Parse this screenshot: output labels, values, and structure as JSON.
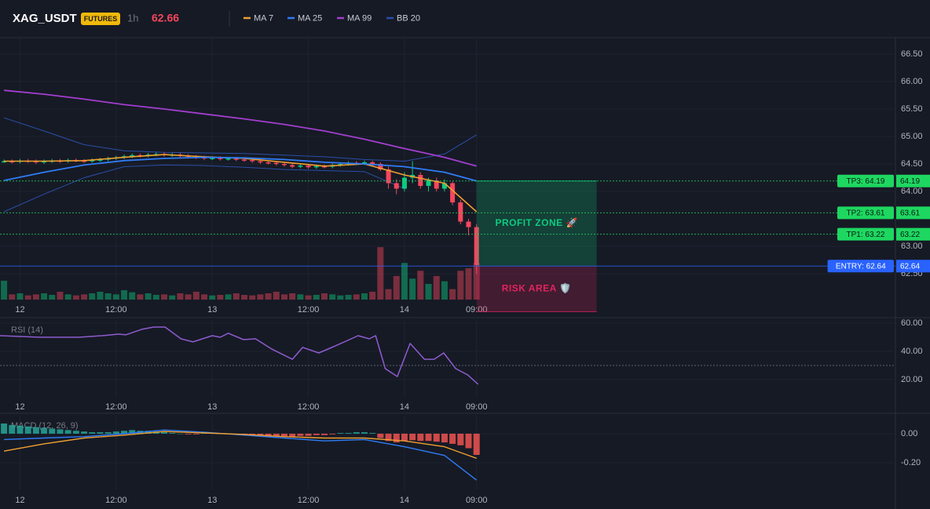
{
  "header": {
    "symbol": "XAG_USDT",
    "badge": "FUTURES",
    "interval": "1h",
    "last_price": 62.66
  },
  "chart_data": [
    {
      "type": "candlestick",
      "x": [
        -2,
        -1,
        0,
        1,
        2,
        3,
        4,
        5,
        6,
        7,
        8,
        9,
        10,
        11,
        12,
        13,
        14,
        15,
        16,
        17,
        18,
        19,
        20,
        21,
        22,
        23,
        24,
        25,
        26,
        27,
        28,
        29,
        30,
        31,
        32,
        33,
        34,
        35,
        36,
        37,
        38,
        39,
        40,
        41,
        42,
        43,
        44,
        45,
        46,
        47,
        48,
        49,
        50,
        51,
        52,
        53,
        54,
        55,
        56,
        57
      ],
      "open": [
        64.55,
        64.55,
        64.54,
        64.56,
        64.55,
        64.53,
        64.55,
        64.56,
        64.55,
        64.57,
        64.56,
        64.55,
        64.57,
        64.58,
        64.6,
        64.62,
        64.64,
        64.66,
        64.65,
        64.67,
        64.68,
        64.66,
        64.67,
        64.65,
        64.63,
        64.62,
        64.6,
        64.61,
        64.59,
        64.6,
        64.58,
        64.57,
        64.55,
        64.53,
        64.52,
        64.5,
        64.48,
        64.45,
        64.47,
        64.44,
        64.46,
        64.45,
        64.48,
        64.5,
        64.52,
        64.51,
        64.53,
        64.5,
        64.4,
        64.15,
        64.05,
        64.25,
        64.3,
        64.1,
        64.2,
        64.05,
        64.15,
        63.8,
        63.45,
        63.35
      ],
      "high": [
        64.58,
        64.58,
        64.59,
        64.59,
        64.58,
        64.58,
        64.59,
        64.59,
        64.6,
        64.6,
        64.59,
        64.6,
        64.61,
        64.63,
        64.65,
        64.67,
        64.69,
        64.69,
        64.7,
        64.71,
        64.71,
        64.7,
        64.7,
        64.68,
        64.66,
        64.65,
        64.64,
        64.64,
        64.63,
        64.63,
        64.61,
        64.6,
        64.58,
        64.56,
        64.55,
        64.53,
        64.51,
        64.5,
        64.5,
        64.49,
        64.49,
        64.51,
        64.53,
        64.55,
        64.55,
        64.56,
        64.56,
        64.53,
        64.45,
        64.22,
        64.35,
        64.55,
        64.35,
        64.25,
        64.25,
        64.22,
        64.18,
        63.85,
        63.5,
        63.4
      ],
      "low": [
        64.52,
        64.51,
        64.51,
        64.52,
        64.5,
        64.5,
        64.52,
        64.52,
        64.52,
        64.53,
        64.52,
        64.52,
        64.54,
        64.55,
        64.57,
        64.59,
        64.61,
        64.62,
        64.62,
        64.64,
        64.63,
        64.63,
        64.62,
        64.6,
        64.59,
        64.57,
        64.57,
        64.56,
        64.56,
        64.55,
        64.54,
        64.52,
        64.5,
        64.49,
        64.47,
        64.45,
        64.42,
        64.42,
        64.41,
        64.41,
        64.42,
        64.42,
        64.45,
        64.47,
        64.48,
        64.48,
        64.47,
        64.37,
        64.05,
        63.95,
        64.0,
        64.15,
        64.05,
        64.0,
        64.0,
        64.0,
        63.75,
        63.4,
        63.2,
        62.5
      ],
      "close": [
        64.55,
        64.54,
        64.56,
        64.55,
        64.53,
        64.55,
        64.56,
        64.55,
        64.57,
        64.56,
        64.55,
        64.57,
        64.58,
        64.6,
        64.62,
        64.64,
        64.66,
        64.65,
        64.67,
        64.68,
        64.66,
        64.67,
        64.65,
        64.63,
        64.62,
        64.6,
        64.61,
        64.59,
        64.6,
        64.58,
        64.57,
        64.55,
        64.53,
        64.52,
        64.5,
        64.48,
        64.45,
        64.47,
        64.44,
        64.46,
        64.45,
        64.48,
        64.5,
        64.52,
        64.51,
        64.53,
        64.5,
        64.4,
        64.15,
        64.05,
        64.25,
        64.3,
        64.1,
        64.2,
        64.05,
        64.15,
        63.8,
        63.45,
        63.35,
        62.66
      ],
      "volume": [
        36,
        10,
        12,
        8,
        10,
        12,
        9,
        15,
        10,
        8,
        10,
        12,
        15,
        12,
        10,
        18,
        14,
        10,
        12,
        9,
        10,
        8,
        12,
        10,
        15,
        10,
        8,
        9,
        10,
        12,
        9,
        8,
        10,
        12,
        15,
        10,
        12,
        10,
        8,
        9,
        12,
        10,
        8,
        9,
        10,
        12,
        15,
        100,
        20,
        45,
        70,
        40,
        55,
        30,
        45,
        35,
        20,
        55,
        60,
        70
      ],
      "y2lim": [
        0,
        500
      ],
      "up_color": "#0ecb81",
      "down_color": "#f6465d",
      "xlim": [
        -2.5,
        109.3
      ],
      "xticks": [
        {
          "value": 0,
          "label": "12"
        },
        {
          "value": 12,
          "label": "12:00"
        },
        {
          "value": 24,
          "label": "13"
        },
        {
          "value": 36,
          "label": "12:00"
        },
        {
          "value": 48,
          "label": "14"
        },
        {
          "value": 57,
          "label": "09:00"
        }
      ],
      "ylim": [
        62.03,
        66.8
      ],
      "yticks": [
        {
          "value": 62.5,
          "label": "62.50"
        },
        {
          "value": 63,
          "label": "63.00"
        },
        {
          "value": 64,
          "label": "64.00"
        },
        {
          "value": 64.5,
          "label": "64.50"
        },
        {
          "value": 65,
          "label": "65.00"
        },
        {
          "value": 65.5,
          "label": "65.50"
        },
        {
          "value": 66,
          "label": "66.00"
        },
        {
          "value": 66.5,
          "label": "66.50"
        }
      ],
      "series": [
        {
          "name": "MA 7",
          "color": "#f0a030",
          "width": 1.6,
          "x": [
            -2,
            3,
            8,
            13,
            18,
            23,
            28,
            33,
            38,
            43,
            48,
            53,
            57
          ],
          "values": [
            64.55,
            64.55,
            64.56,
            64.62,
            64.67,
            64.63,
            64.6,
            64.53,
            64.46,
            64.5,
            64.3,
            64.15,
            63.63
          ]
        },
        {
          "name": "MA 25",
          "color": "#2f7cf6",
          "width": 1.8,
          "x": [
            -2,
            3,
            8,
            13,
            18,
            23,
            28,
            33,
            38,
            43,
            48,
            53,
            57
          ],
          "values": [
            64.2,
            64.35,
            64.48,
            64.56,
            64.6,
            64.62,
            64.61,
            64.58,
            64.53,
            64.5,
            64.45,
            64.35,
            64.19
          ]
        },
        {
          "name": "MA 99",
          "color": "#a33ecf",
          "width": 1.8,
          "x": [
            -2,
            3,
            8,
            13,
            18,
            23,
            28,
            33,
            38,
            43,
            48,
            53,
            57
          ],
          "values": [
            65.84,
            65.77,
            65.68,
            65.58,
            65.5,
            65.41,
            65.32,
            65.22,
            65.1,
            64.95,
            64.78,
            64.62,
            64.46
          ]
        },
        {
          "name": "BB 20",
          "color": "#2a4fa8",
          "width": 1,
          "x": [
            -2,
            3,
            8,
            13,
            18,
            23,
            28,
            33,
            38,
            43,
            48,
            53,
            57
          ],
          "values": [
            65.34,
            65.1,
            64.85,
            64.74,
            64.71,
            64.7,
            64.69,
            64.66,
            64.63,
            64.58,
            64.55,
            64.68,
            65.03
          ]
        },
        {
          "color": "#2a4fa8",
          "width": 1,
          "x": [
            -2,
            3,
            8,
            13,
            18,
            23,
            28,
            33,
            38,
            43,
            48,
            53,
            57
          ],
          "values": [
            63.63,
            63.95,
            64.25,
            64.45,
            64.48,
            64.47,
            64.44,
            64.4,
            64.38,
            64.36,
            64.05,
            null,
            null
          ]
        }
      ],
      "levels": [
        {
          "label": "TP3: 64.19",
          "value": 64.19,
          "color": "#1ed760"
        },
        {
          "label": "TP2: 63.61",
          "value": 63.61,
          "color": "#1ed760"
        },
        {
          "label": "TP1: 63.22",
          "value": 63.22,
          "color": "#1ed760"
        },
        {
          "label": "ENTRY: 62.64",
          "value": 62.64,
          "color": "#2962ff"
        }
      ],
      "zones": [
        {
          "label": "PROFIT ZONE 🚀",
          "from": 62.64,
          "to": 64.19,
          "x": [
            57,
            72
          ],
          "color": "#0ecb81"
        },
        {
          "label": "RISK AREA 🛡️",
          "from": 61.81,
          "to": 62.64,
          "x": [
            57,
            72
          ],
          "color": "#e0245e"
        }
      ]
    },
    {
      "type": "line",
      "title": "RSI (14)",
      "color": "#8e5ccf",
      "x": [
        -2.5,
        2.5,
        7.4,
        10.3,
        12.3,
        13.2,
        15.2,
        16.7,
        18.1,
        20.1,
        21.6,
        24.0,
        25.0,
        26.0,
        27.9,
        29.4,
        31.4,
        34.0,
        35.3,
        37.3,
        38.7,
        40.7,
        42.2,
        43.6,
        44.4,
        45.6,
        47.1,
        48.7,
        50.5,
        51.7,
        52.9,
        54.4,
        55.9,
        57.2
      ],
      "values": [
        51.1,
        50.0,
        50.0,
        51.1,
        52.2,
        51.7,
        55.6,
        57.2,
        57.2,
        48.9,
        46.7,
        51.1,
        50.0,
        52.8,
        48.3,
        48.9,
        41.7,
        34.4,
        42.8,
        38.9,
        42.2,
        47.2,
        51.1,
        48.9,
        51.1,
        27.8,
        22.2,
        45.6,
        34.4,
        34.4,
        38.9,
        27.8,
        23.3,
        16.7
      ],
      "level_lines": [
        30
      ],
      "xlim": [
        -2.5,
        109.3
      ],
      "xticks": [
        {
          "value": 0,
          "label": "12"
        },
        {
          "value": 12,
          "label": "12:00"
        },
        {
          "value": 24,
          "label": "13"
        },
        {
          "value": 36,
          "label": "12:00"
        },
        {
          "value": 48,
          "label": "14"
        },
        {
          "value": 57,
          "label": "09:00"
        }
      ],
      "ylim": [
        7.8,
        62.2
      ],
      "yticks": [
        {
          "value": 20,
          "label": "20.00"
        },
        {
          "value": 40,
          "label": "40.00"
        },
        {
          "value": 60,
          "label": "60.00"
        }
      ]
    },
    {
      "type": "macd",
      "title": "MACD (12, 26, 9)",
      "x": [
        -2,
        -1,
        0,
        1,
        2,
        3,
        4,
        5,
        6,
        7,
        8,
        9,
        10,
        11,
        12,
        13,
        14,
        15,
        16,
        17,
        18,
        19,
        20,
        21,
        22,
        23,
        24,
        25,
        26,
        27,
        28,
        29,
        30,
        31,
        32,
        33,
        34,
        35,
        36,
        37,
        38,
        39,
        40,
        41,
        42,
        43,
        44,
        45,
        46,
        47,
        48,
        49,
        50,
        51,
        52,
        53,
        54,
        55,
        56,
        57
      ],
      "histogram": [
        0.07,
        0.06,
        0.055,
        0.05,
        0.045,
        0.04,
        0.035,
        0.03,
        0.025,
        0.02,
        0.015,
        0.01,
        0.01,
        0.01,
        0.015,
        0.02,
        0.025,
        0.02,
        0.02,
        0.015,
        0.01,
        0.005,
        0.0,
        -0.005,
        -0.005,
        0.005,
        0.005,
        0.0,
        -0.005,
        -0.005,
        -0.01,
        -0.01,
        -0.015,
        -0.02,
        -0.02,
        -0.02,
        -0.02,
        -0.015,
        -0.015,
        -0.01,
        -0.01,
        -0.005,
        0.005,
        0.005,
        0.01,
        0.01,
        0.005,
        -0.03,
        -0.05,
        -0.06,
        -0.05,
        -0.045,
        -0.05,
        -0.05,
        -0.055,
        -0.06,
        -0.07,
        -0.08,
        -0.1,
        -0.146
      ],
      "up_color": "#26a69a",
      "down_color": "#ef5350",
      "series": [
        {
          "color": "#2f7cf6",
          "x": [
            -2,
            3,
            8,
            13,
            18,
            23,
            28,
            33,
            38,
            43,
            48,
            53,
            57
          ],
          "values": [
            -0.04,
            -0.03,
            -0.02,
            0.0,
            0.025,
            0.01,
            -0.01,
            -0.03,
            -0.05,
            -0.04,
            -0.09,
            -0.15,
            -0.32
          ]
        },
        {
          "color": "#f0a030",
          "x": [
            -2,
            3,
            8,
            13,
            18,
            23,
            28,
            33,
            38,
            43,
            48,
            53,
            57
          ],
          "values": [
            -0.12,
            -0.07,
            -0.03,
            -0.01,
            0.015,
            0.005,
            -0.005,
            -0.02,
            -0.03,
            -0.03,
            -0.05,
            -0.09,
            -0.17
          ]
        }
      ],
      "xlim": [
        -2.5,
        109.3
      ],
      "xticks": [
        {
          "value": 0,
          "label": "12"
        },
        {
          "value": 12,
          "label": "12:00"
        },
        {
          "value": 24,
          "label": "13"
        },
        {
          "value": 36,
          "label": "12:00"
        },
        {
          "value": 48,
          "label": "14"
        },
        {
          "value": 57,
          "label": "09:00"
        }
      ],
      "ylim": [
        -0.389,
        0.124
      ],
      "yticks": [
        {
          "value": -0.2,
          "label": "-0.20"
        },
        {
          "value": 0,
          "label": "0.00"
        }
      ]
    }
  ]
}
